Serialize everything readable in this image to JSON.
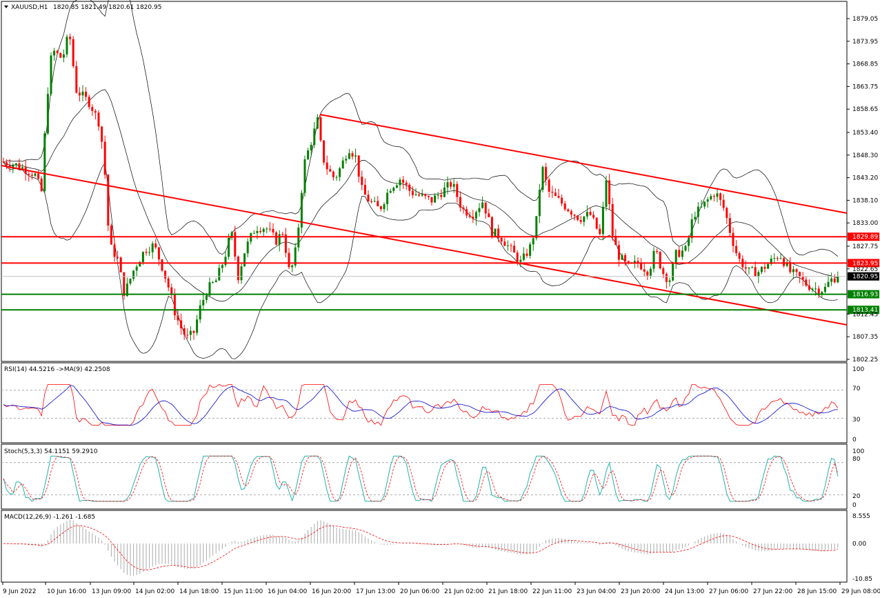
{
  "chart_data": {
    "type": "candlestick",
    "symbol_header": "XAUUSD,H1",
    "ohlc_header": "1820.85 1821.49 1820.61 1820.95",
    "colors": {
      "bull": "#008000",
      "bear": "#ff0000",
      "bands": "#000000",
      "channel": "#ff0000",
      "resistance": "#ff0000",
      "support": "#008000",
      "rsi": "#ff0000",
      "rsi_ma": "#0000cc",
      "stoch_main": "#20b2aa",
      "stoch_signal": "#ff0000",
      "macd_hist": "#a9a9a9",
      "macd_signal": "#ff0000"
    },
    "price_axis": {
      "ticks": [
        "1879.05",
        "1873.95",
        "1868.85",
        "1863.75",
        "1858.65",
        "1853.40",
        "1848.30",
        "1843.20",
        "1838.10",
        "1833.00",
        "1827.75",
        "1822.65",
        "1812.45",
        "1807.35",
        "1802.25"
      ],
      "ylim": [
        1800.6,
        1882.0
      ],
      "current": "1820.95"
    },
    "levels": [
      {
        "value": "1829.89",
        "kind": "resistance"
      },
      {
        "value": "1823.95",
        "kind": "resistance"
      },
      {
        "value": "1816.93",
        "kind": "support"
      },
      {
        "value": "1813.41",
        "kind": "support"
      }
    ],
    "x_axis_labels": [
      "9 Jun 2022",
      "10 Jun 16:00",
      "13 Jun 09:00",
      "14 Jun 02:00",
      "14 Jun 18:00",
      "15 Jun 11:00",
      "16 Jun 04:00",
      "16 Jun 20:00",
      "17 Jun 13:00",
      "20 Jun 06:00",
      "21 Jun 02:00",
      "21 Jun 18:00",
      "22 Jun 11:00",
      "23 Jun 04:00",
      "23 Jun 20:00",
      "24 Jun 13:00",
      "27 Jun 06:00",
      "27 Jun 22:00",
      "28 Jun 15:00",
      "29 Jun 08:00"
    ],
    "price_path": [
      [
        0,
        1847
      ],
      [
        30,
        1846
      ],
      [
        55,
        1844
      ],
      [
        65,
        1840
      ],
      [
        72,
        1860
      ],
      [
        80,
        1872
      ],
      [
        95,
        1870
      ],
      [
        105,
        1876
      ],
      [
        115,
        1863
      ],
      [
        135,
        1860
      ],
      [
        150,
        1855
      ],
      [
        158,
        1842
      ],
      [
        163,
        1828
      ],
      [
        175,
        1825
      ],
      [
        185,
        1817
      ],
      [
        200,
        1823
      ],
      [
        215,
        1827
      ],
      [
        228,
        1828
      ],
      [
        240,
        1823
      ],
      [
        250,
        1818
      ],
      [
        258,
        1813
      ],
      [
        265,
        1810
      ],
      [
        275,
        1807
      ],
      [
        285,
        1808
      ],
      [
        295,
        1814
      ],
      [
        305,
        1818
      ],
      [
        318,
        1820
      ],
      [
        330,
        1825
      ],
      [
        340,
        1831
      ],
      [
        350,
        1821
      ],
      [
        360,
        1827
      ],
      [
        375,
        1832
      ],
      [
        390,
        1832
      ],
      [
        405,
        1829
      ],
      [
        415,
        1831
      ],
      [
        425,
        1821
      ],
      [
        435,
        1828
      ],
      [
        445,
        1846
      ],
      [
        455,
        1851
      ],
      [
        465,
        1856
      ],
      [
        472,
        1848
      ],
      [
        480,
        1845
      ],
      [
        490,
        1843
      ],
      [
        500,
        1846
      ],
      [
        510,
        1850
      ],
      [
        520,
        1848
      ],
      [
        530,
        1840
      ],
      [
        540,
        1838
      ],
      [
        555,
        1836
      ],
      [
        570,
        1841
      ],
      [
        585,
        1843
      ],
      [
        600,
        1840
      ],
      [
        615,
        1839
      ],
      [
        630,
        1838
      ],
      [
        645,
        1840
      ],
      [
        660,
        1842
      ],
      [
        675,
        1836
      ],
      [
        690,
        1835
      ],
      [
        705,
        1838
      ],
      [
        718,
        1831
      ],
      [
        730,
        1830
      ],
      [
        745,
        1827
      ],
      [
        760,
        1824
      ],
      [
        775,
        1828
      ],
      [
        783,
        1834
      ],
      [
        790,
        1846
      ],
      [
        800,
        1840
      ],
      [
        815,
        1838
      ],
      [
        830,
        1836
      ],
      [
        845,
        1834
      ],
      [
        860,
        1835
      ],
      [
        875,
        1830
      ],
      [
        885,
        1845
      ],
      [
        890,
        1832
      ],
      [
        900,
        1826
      ],
      [
        915,
        1823
      ],
      [
        930,
        1824
      ],
      [
        945,
        1822
      ],
      [
        955,
        1827
      ],
      [
        965,
        1822
      ],
      [
        975,
        1820
      ],
      [
        985,
        1826
      ],
      [
        1000,
        1827
      ],
      [
        1010,
        1835
      ],
      [
        1020,
        1836
      ],
      [
        1030,
        1838
      ],
      [
        1042,
        1840
      ],
      [
        1055,
        1836
      ],
      [
        1065,
        1830
      ],
      [
        1075,
        1825
      ],
      [
        1090,
        1822
      ],
      [
        1105,
        1822
      ],
      [
        1120,
        1824
      ],
      [
        1135,
        1826
      ],
      [
        1150,
        1822
      ],
      [
        1160,
        1821
      ],
      [
        1175,
        1819
      ],
      [
        1190,
        1818
      ],
      [
        1200,
        1818
      ],
      [
        1208,
        1820
      ],
      [
        1218,
        1820.95
      ]
    ],
    "rsi": {
      "label": "RSI(14) 44.5216  ->MA(9) 42.2508",
      "scale": [
        "100",
        "70",
        "30",
        "0"
      ],
      "levels": [
        30,
        70
      ],
      "last": 44.52,
      "ma_last": 42.25
    },
    "stochastic": {
      "label": "Stoch(5,3,3) 54.1151 59.2910",
      "scale": [
        "100",
        "80",
        "20",
        "0"
      ],
      "levels": [
        20,
        80
      ],
      "main_last": 54.12,
      "signal_last": 59.29
    },
    "macd": {
      "label": "MACD(12,26,9) -1.261 -1.685",
      "scale": [
        "8.555",
        "0.00",
        "-10.85"
      ],
      "main_last": -1.261,
      "signal_last": -1.685
    }
  }
}
